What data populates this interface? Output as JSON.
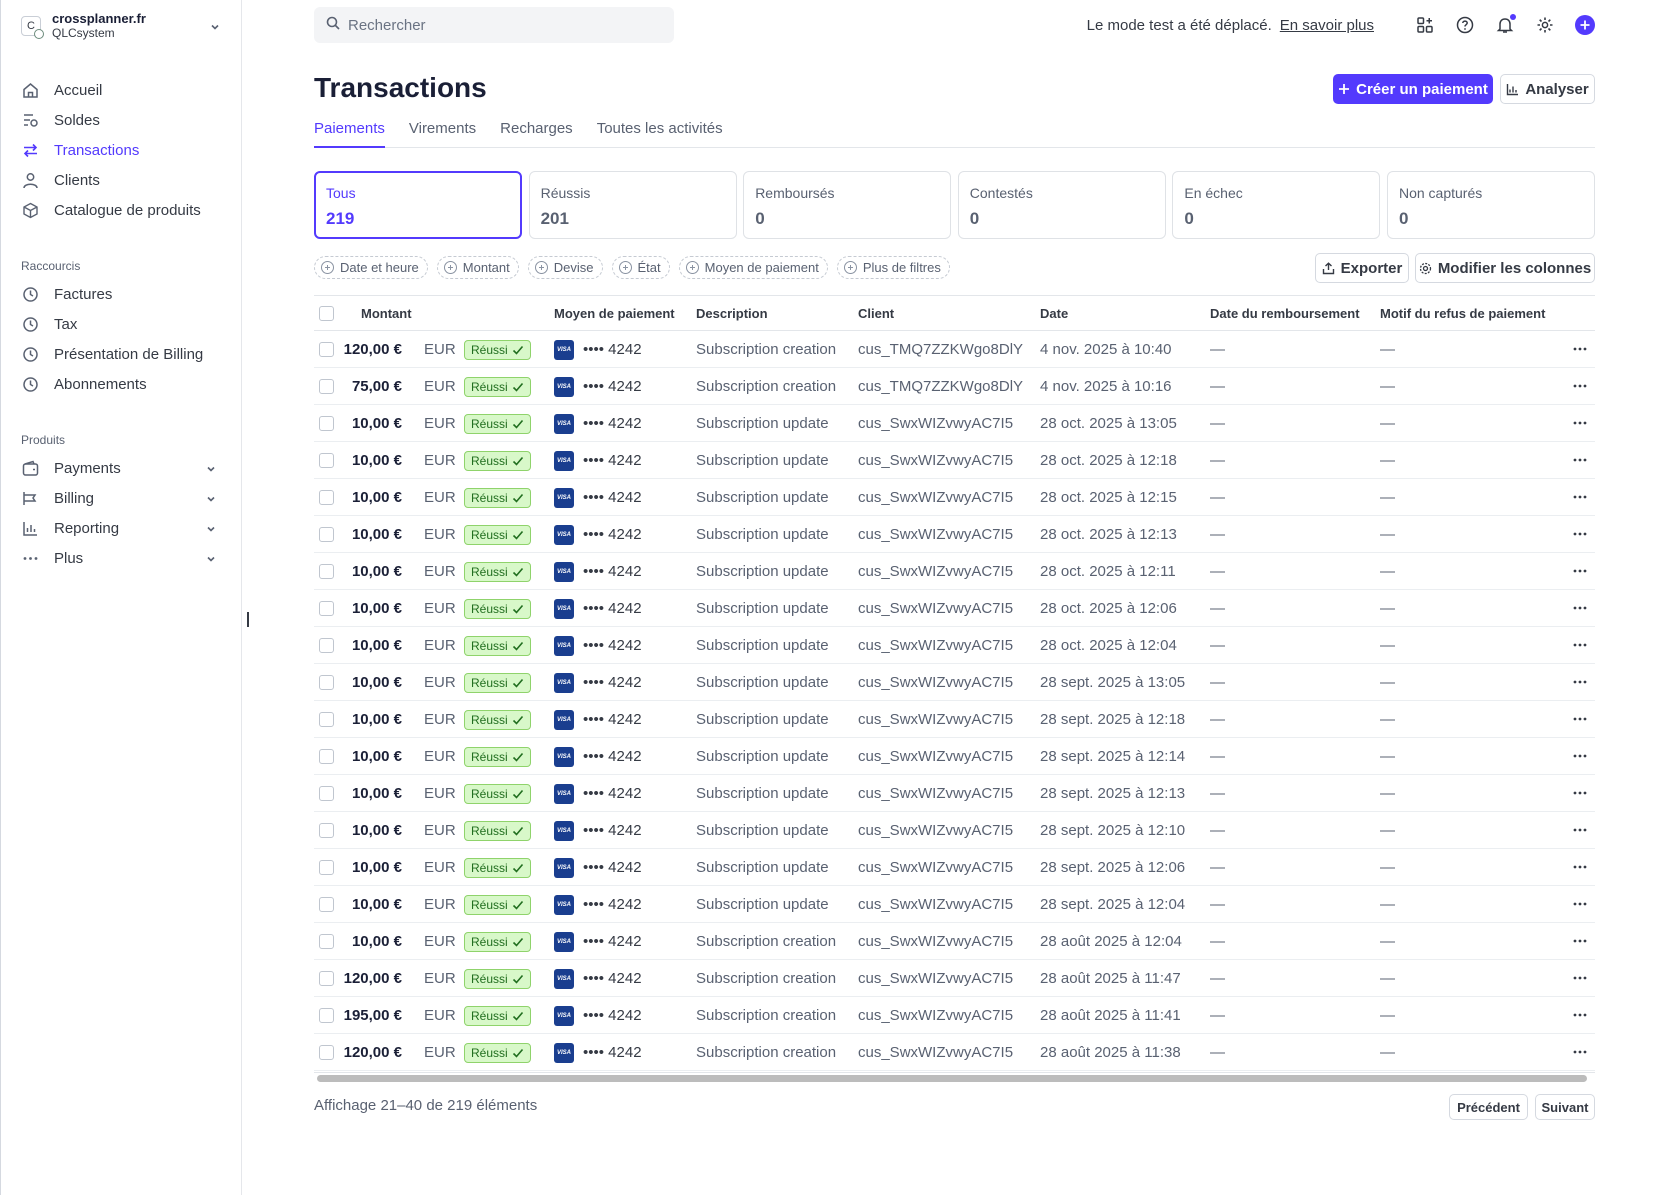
{
  "account": {
    "initial": "C",
    "name": "crossplanner.fr",
    "sub": "QLCsystem"
  },
  "sidebar": {
    "main": [
      {
        "label": "Accueil",
        "icon": "home-icon"
      },
      {
        "label": "Soldes",
        "icon": "balance-icon"
      },
      {
        "label": "Transactions",
        "icon": "arrows-icon",
        "active": true
      },
      {
        "label": "Clients",
        "icon": "person-icon"
      },
      {
        "label": "Catalogue de produits",
        "icon": "box-icon"
      }
    ],
    "shortcuts_title": "Raccourcis",
    "shortcuts": [
      {
        "label": "Factures",
        "icon": "clock-icon"
      },
      {
        "label": "Tax",
        "icon": "clock-icon"
      },
      {
        "label": "Présentation de Billing",
        "icon": "clock-icon"
      },
      {
        "label": "Abonnements",
        "icon": "clock-icon"
      }
    ],
    "products_title": "Produits",
    "products": [
      {
        "label": "Payments",
        "icon": "wallet-icon"
      },
      {
        "label": "Billing",
        "icon": "billing-icon"
      },
      {
        "label": "Reporting",
        "icon": "chart-icon"
      },
      {
        "label": "Plus",
        "icon": "more-icon"
      }
    ]
  },
  "header": {
    "search_placeholder": "Rechercher",
    "test_mode_text": "Le mode test a été déplacé.",
    "learn_more": "En savoir plus"
  },
  "page": {
    "title": "Transactions",
    "create_button": "Créer un paiement",
    "analyze_button": "Analyser",
    "tabs": [
      "Paiements",
      "Virements",
      "Recharges",
      "Toutes les activités"
    ]
  },
  "cards": [
    {
      "label": "Tous",
      "value": "219"
    },
    {
      "label": "Réussis",
      "value": "201"
    },
    {
      "label": "Remboursés",
      "value": "0"
    },
    {
      "label": "Contestés",
      "value": "0"
    },
    {
      "label": "En échec",
      "value": "0"
    },
    {
      "label": "Non capturés",
      "value": "0"
    }
  ],
  "filters": [
    "Date et heure",
    "Montant",
    "Devise",
    "État",
    "Moyen de paiement",
    "Plus de filtres"
  ],
  "actions": {
    "export": "Exporter",
    "columns": "Modifier les colonnes"
  },
  "table": {
    "headers": [
      "Montant",
      "Moyen de paiement",
      "Description",
      "Client",
      "Date",
      "Date du remboursement",
      "Motif du refus de paiement"
    ],
    "status_label": "Réussi",
    "card_brand": "VISA",
    "rows": [
      {
        "amount": "120,00 €",
        "currency": "EUR",
        "last4": "•••• 4242",
        "description": "Subscription creation",
        "customer": "cus_TMQ7ZZKWgo8DlY",
        "date": "4 nov. 2025 à 10:40",
        "refund": "—",
        "reason": "—"
      },
      {
        "amount": "75,00 €",
        "currency": "EUR",
        "last4": "•••• 4242",
        "description": "Subscription creation",
        "customer": "cus_TMQ7ZZKWgo8DlY",
        "date": "4 nov. 2025 à 10:16",
        "refund": "—",
        "reason": "—"
      },
      {
        "amount": "10,00 €",
        "currency": "EUR",
        "last4": "•••• 4242",
        "description": "Subscription update",
        "customer": "cus_SwxWIZvwyAC7I5",
        "date": "28 oct. 2025 à 13:05",
        "refund": "—",
        "reason": "—"
      },
      {
        "amount": "10,00 €",
        "currency": "EUR",
        "last4": "•••• 4242",
        "description": "Subscription update",
        "customer": "cus_SwxWIZvwyAC7I5",
        "date": "28 oct. 2025 à 12:18",
        "refund": "—",
        "reason": "—"
      },
      {
        "amount": "10,00 €",
        "currency": "EUR",
        "last4": "•••• 4242",
        "description": "Subscription update",
        "customer": "cus_SwxWIZvwyAC7I5",
        "date": "28 oct. 2025 à 12:15",
        "refund": "—",
        "reason": "—"
      },
      {
        "amount": "10,00 €",
        "currency": "EUR",
        "last4": "•••• 4242",
        "description": "Subscription update",
        "customer": "cus_SwxWIZvwyAC7I5",
        "date": "28 oct. 2025 à 12:13",
        "refund": "—",
        "reason": "—"
      },
      {
        "amount": "10,00 €",
        "currency": "EUR",
        "last4": "•••• 4242",
        "description": "Subscription update",
        "customer": "cus_SwxWIZvwyAC7I5",
        "date": "28 oct. 2025 à 12:11",
        "refund": "—",
        "reason": "—"
      },
      {
        "amount": "10,00 €",
        "currency": "EUR",
        "last4": "•••• 4242",
        "description": "Subscription update",
        "customer": "cus_SwxWIZvwyAC7I5",
        "date": "28 oct. 2025 à 12:06",
        "refund": "—",
        "reason": "—"
      },
      {
        "amount": "10,00 €",
        "currency": "EUR",
        "last4": "•••• 4242",
        "description": "Subscription update",
        "customer": "cus_SwxWIZvwyAC7I5",
        "date": "28 oct. 2025 à 12:04",
        "refund": "—",
        "reason": "—"
      },
      {
        "amount": "10,00 €",
        "currency": "EUR",
        "last4": "•••• 4242",
        "description": "Subscription update",
        "customer": "cus_SwxWIZvwyAC7I5",
        "date": "28 sept. 2025 à 13:05",
        "refund": "—",
        "reason": "—"
      },
      {
        "amount": "10,00 €",
        "currency": "EUR",
        "last4": "•••• 4242",
        "description": "Subscription update",
        "customer": "cus_SwxWIZvwyAC7I5",
        "date": "28 sept. 2025 à 12:18",
        "refund": "—",
        "reason": "—"
      },
      {
        "amount": "10,00 €",
        "currency": "EUR",
        "last4": "•••• 4242",
        "description": "Subscription update",
        "customer": "cus_SwxWIZvwyAC7I5",
        "date": "28 sept. 2025 à 12:14",
        "refund": "—",
        "reason": "—"
      },
      {
        "amount": "10,00 €",
        "currency": "EUR",
        "last4": "•••• 4242",
        "description": "Subscription update",
        "customer": "cus_SwxWIZvwyAC7I5",
        "date": "28 sept. 2025 à 12:13",
        "refund": "—",
        "reason": "—"
      },
      {
        "amount": "10,00 €",
        "currency": "EUR",
        "last4": "•••• 4242",
        "description": "Subscription update",
        "customer": "cus_SwxWIZvwyAC7I5",
        "date": "28 sept. 2025 à 12:10",
        "refund": "—",
        "reason": "—"
      },
      {
        "amount": "10,00 €",
        "currency": "EUR",
        "last4": "•••• 4242",
        "description": "Subscription update",
        "customer": "cus_SwxWIZvwyAC7I5",
        "date": "28 sept. 2025 à 12:06",
        "refund": "—",
        "reason": "—"
      },
      {
        "amount": "10,00 €",
        "currency": "EUR",
        "last4": "•••• 4242",
        "description": "Subscription update",
        "customer": "cus_SwxWIZvwyAC7I5",
        "date": "28 sept. 2025 à 12:04",
        "refund": "—",
        "reason": "—"
      },
      {
        "amount": "10,00 €",
        "currency": "EUR",
        "last4": "•••• 4242",
        "description": "Subscription creation",
        "customer": "cus_SwxWIZvwyAC7I5",
        "date": "28 août 2025 à 12:04",
        "refund": "—",
        "reason": "—"
      },
      {
        "amount": "120,00 €",
        "currency": "EUR",
        "last4": "•••• 4242",
        "description": "Subscription creation",
        "customer": "cus_SwxWIZvwyAC7I5",
        "date": "28 août 2025 à 11:47",
        "refund": "—",
        "reason": "—"
      },
      {
        "amount": "195,00 €",
        "currency": "EUR",
        "last4": "•••• 4242",
        "description": "Subscription creation",
        "customer": "cus_SwxWIZvwyAC7I5",
        "date": "28 août 2025 à 11:41",
        "refund": "—",
        "reason": "—"
      },
      {
        "amount": "120,00 €",
        "currency": "EUR",
        "last4": "•••• 4242",
        "description": "Subscription creation",
        "customer": "cus_SwxWIZvwyAC7I5",
        "date": "28 août 2025 à 11:38",
        "refund": "—",
        "reason": "—"
      }
    ]
  },
  "footer": {
    "showing": "Affichage 21–40 de 219 éléments",
    "prev": "Précédent",
    "next": "Suivant"
  },
  "colors": {
    "accent": "#533afd",
    "success_bg": "#d8f8c9",
    "success_text": "#216e1f",
    "visa": "#1a3e8f"
  }
}
